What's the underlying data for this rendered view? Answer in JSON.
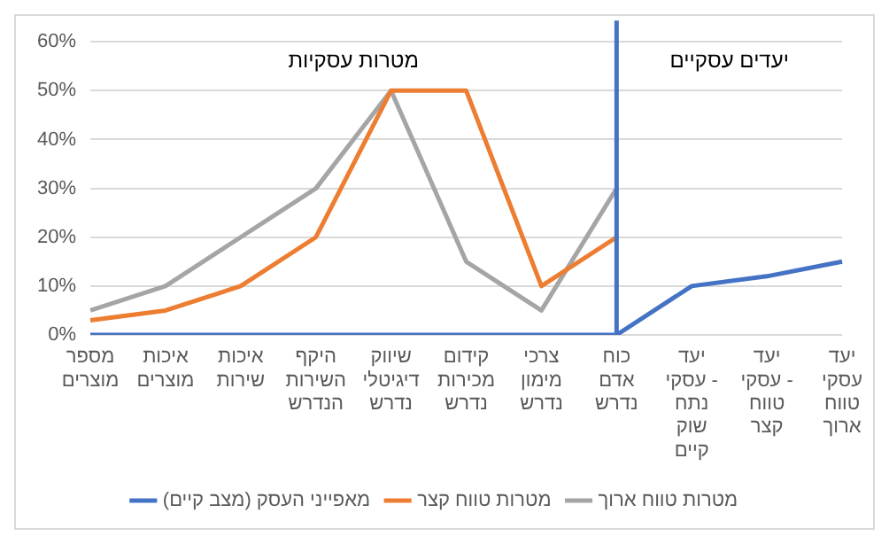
{
  "chart_data": {
    "type": "line",
    "categories": [
      "מספר מוצרים",
      "איכות מוצרים",
      "איכות שירות",
      "היקף השירות הנדרש",
      "שיווק דיגיטלי נדרש",
      "קידום מכירות נדרש",
      "צרכי מימון נדרש",
      "כוח אדם נדרש",
      "יעד עסקי - נתח שוק קיים",
      "יעד עסקי - טווח קצר",
      "יעד עסקי טווח ארוך"
    ],
    "series": [
      {
        "name": "מאפייני העסק (מצב קיים)",
        "color": "#4472c4",
        "values": [
          0,
          0,
          0,
          0,
          0,
          0,
          0,
          0,
          10,
          12,
          15
        ]
      },
      {
        "name": "מטרות טווח קצר",
        "color": "#ed7d31",
        "values": [
          3,
          5,
          10,
          20,
          50,
          50,
          10,
          20,
          null,
          null,
          null
        ]
      },
      {
        "name": "מטרות טווח ארוך",
        "color": "#a5a5a5",
        "values": [
          5,
          10,
          20,
          30,
          50,
          15,
          5,
          30,
          null,
          null,
          null
        ]
      }
    ],
    "ylim": [
      0,
      60
    ],
    "yticks": [
      {
        "value": 0,
        "label": "0%"
      },
      {
        "value": 10,
        "label": "10%"
      },
      {
        "value": 20,
        "label": "20%"
      },
      {
        "value": 30,
        "label": "30%"
      },
      {
        "value": 40,
        "label": "40%"
      },
      {
        "value": 50,
        "label": "50%"
      },
      {
        "value": 60,
        "label": "60%"
      }
    ],
    "grid": "y",
    "legend": "bottom",
    "marker": "none",
    "line_style": "solid",
    "ref_lines": [
      {
        "axis": "x",
        "value": "כוח אדם נדרש",
        "color": "#4472c4"
      }
    ],
    "annotations": [
      "מטרות עסקיות",
      "יעדים עסקיים"
    ]
  }
}
